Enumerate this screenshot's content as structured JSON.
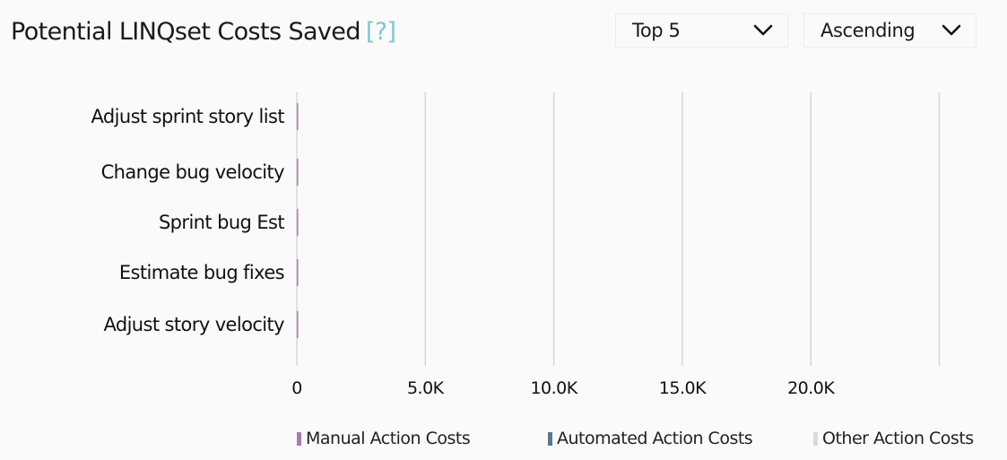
{
  "header": {
    "title": "Potential LINQset Costs Saved",
    "help_label": "[?]"
  },
  "controls": {
    "top_n": {
      "selected": "Top 5",
      "icon": "chevron-down-icon"
    },
    "sort_order": {
      "selected": "Ascending",
      "icon": "chevron-down-icon"
    }
  },
  "colors": {
    "manual": "#a67bb1",
    "automated": "#5a7896",
    "other": "#d9d9d9",
    "gridline": "#d4d4d4"
  },
  "chart_data": {
    "type": "bar",
    "orientation": "horizontal",
    "stacked": true,
    "title": "Potential LINQset Costs Saved",
    "categories": [
      "Adjust sprint story list",
      "Change bug velocity",
      "Sprint bug Est",
      "Estimate bug fixes",
      "Adjust story velocity"
    ],
    "series": [
      {
        "name": "Manual Action Costs",
        "values": [
          20,
          20,
          20,
          20,
          20
        ]
      },
      {
        "name": "Automated Action Costs",
        "values": [
          0,
          0,
          0,
          0,
          0
        ]
      },
      {
        "name": "Other Action Costs",
        "values": [
          0,
          0,
          0,
          0,
          0
        ]
      }
    ],
    "x_ticks": [
      0,
      5000,
      10000,
      15000,
      20000
    ],
    "x_tick_labels": [
      "0",
      "5.0K",
      "10.0K",
      "15.0K",
      "20.0K"
    ],
    "xlim": [
      0,
      25000
    ],
    "grid": "vertical",
    "legend_position": "bottom-right"
  }
}
